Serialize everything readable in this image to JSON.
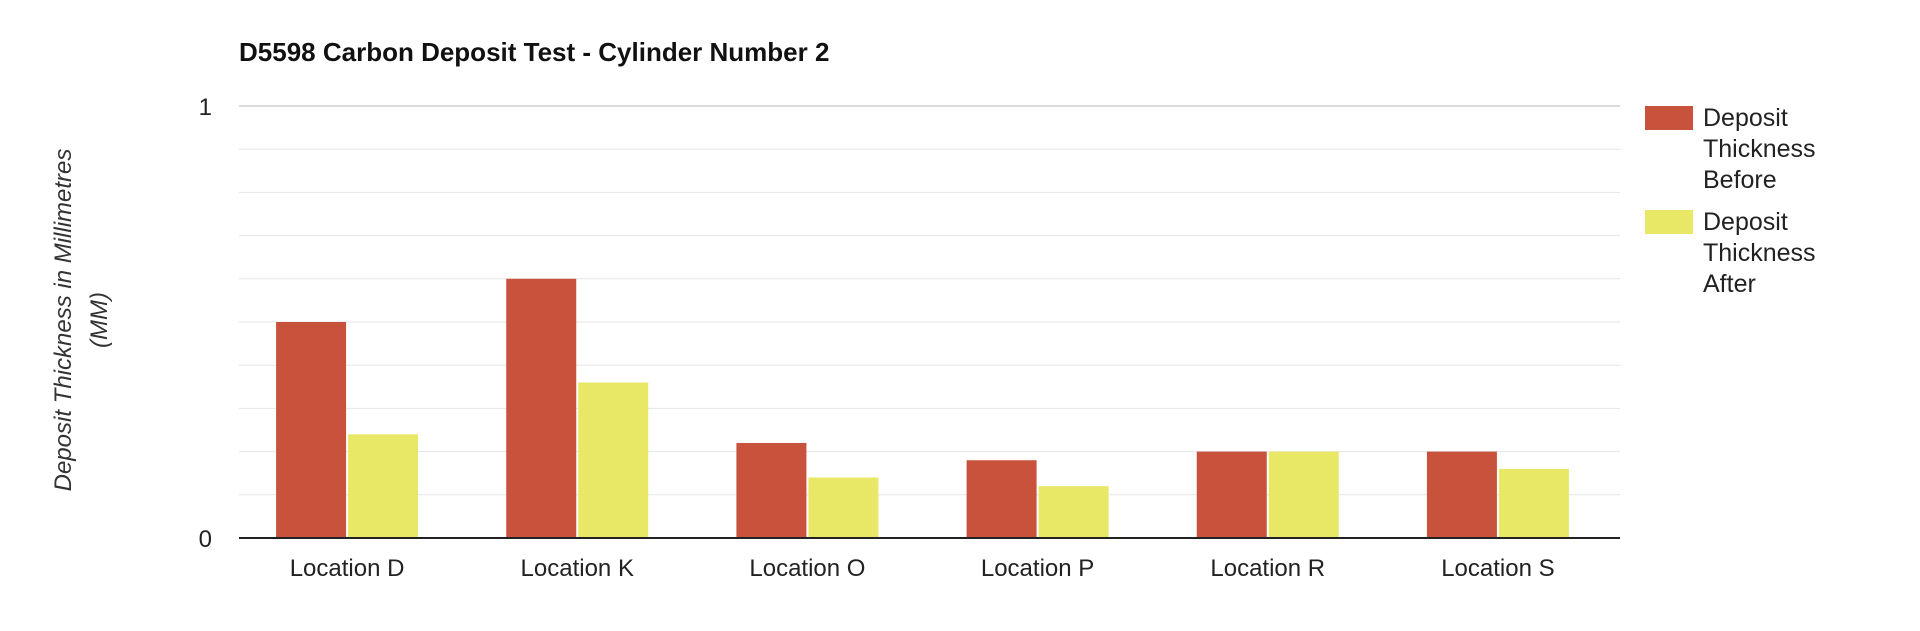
{
  "chart_data": {
    "type": "bar",
    "title": "D5598 Carbon Deposit Test - Cylinder Number 2",
    "xlabel": "",
    "ylabel": "Deposit Thickness in Millimetres (MM)",
    "ylim": [
      0,
      1
    ],
    "yticks": [
      "0",
      "1"
    ],
    "grid": true,
    "legend": "right",
    "categories": [
      "Location D",
      "Location K",
      "Location O",
      "Location P",
      "Location R",
      "Location S"
    ],
    "series": [
      {
        "name": "Deposit Thickness Before",
        "color": "#c8523b",
        "values": [
          0.5,
          0.6,
          0.22,
          0.18,
          0.2,
          0.2
        ]
      },
      {
        "name": "Deposit Thickness After",
        "color": "#e8e866",
        "values": [
          0.24,
          0.36,
          0.14,
          0.12,
          0.2,
          0.16
        ]
      }
    ]
  }
}
